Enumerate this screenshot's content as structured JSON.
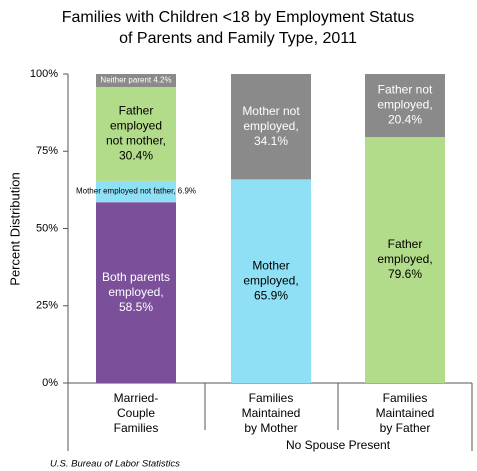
{
  "chart_data": {
    "type": "stacked-bar",
    "title": [
      "Families with Children <18 by Employment Status",
      "of Parents and Family Type, 2011"
    ],
    "ylabel": "Percent Distribution",
    "ylim": [
      0,
      100
    ],
    "yticks": [
      {
        "value": 0,
        "label": "0%"
      },
      {
        "value": 25,
        "label": "25%"
      },
      {
        "value": 50,
        "label": "50%"
      },
      {
        "value": 75,
        "label": "75%"
      },
      {
        "value": 100,
        "label": "100%"
      }
    ],
    "categories": [
      [
        "Married-",
        "Couple",
        "Families"
      ],
      [
        "Families",
        "Maintained",
        "by Mother"
      ],
      [
        "Families",
        "Maintained",
        "by Father"
      ]
    ],
    "group_label": "No Spouse Present",
    "source": "U.S. Bureau of Labor Statistics",
    "bars": [
      {
        "segments": [
          {
            "value": 58.5,
            "color": "#7b4f9a",
            "text_color": "#ffffff",
            "value_label": [
              "Both parents",
              "employed,",
              "58.5%"
            ]
          },
          {
            "value": 6.9,
            "color": "#8fe0f5",
            "text_color": "#000000",
            "small": true,
            "value_label": [
              "Mother employed not father, 6.9%"
            ]
          },
          {
            "value": 30.4,
            "color": "#b3dc8a",
            "text_color": "#000000",
            "value_label": [
              "Father",
              "employed",
              "not mother,",
              "30.4%"
            ]
          },
          {
            "value": 4.2,
            "color": "#8a8a8a",
            "text_color": "#ffffff",
            "small": true,
            "value_label": [
              "Neither parent 4.2%"
            ]
          }
        ]
      },
      {
        "segments": [
          {
            "value": 65.9,
            "color": "#8fe0f5",
            "text_color": "#000000",
            "value_label": [
              "Mother",
              "employed,",
              "65.9%"
            ]
          },
          {
            "value": 34.1,
            "color": "#8a8a8a",
            "text_color": "#ffffff",
            "value_label": [
              "Mother not",
              "employed,",
              "34.1%"
            ]
          }
        ]
      },
      {
        "segments": [
          {
            "value": 79.6,
            "color": "#b3dc8a",
            "text_color": "#000000",
            "value_label": [
              "Father",
              "employed,",
              "79.6%"
            ]
          },
          {
            "value": 20.4,
            "color": "#8a8a8a",
            "text_color": "#ffffff",
            "value_label": [
              "Father not",
              "employed,",
              "20.4%"
            ]
          }
        ]
      }
    ]
  }
}
